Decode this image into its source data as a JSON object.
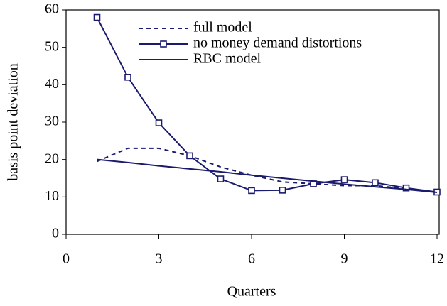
{
  "chart_data": {
    "type": "line",
    "x_label": "Quarters",
    "y_label": "basis point deviation",
    "x": [
      1,
      2,
      3,
      4,
      5,
      6,
      7,
      8,
      9,
      10,
      11,
      12
    ],
    "series": [
      {
        "name": "full model",
        "color": "#1a1a6e",
        "dash": true,
        "marker": null,
        "values": [
          19.5,
          23,
          23,
          21,
          18,
          15.8,
          14,
          13.5,
          13,
          13,
          12.2,
          11.2
        ]
      },
      {
        "name": "no money demand distortions",
        "color": "#1a1a6e",
        "dash": false,
        "marker": "square",
        "values": [
          58,
          42,
          29.8,
          21,
          14.8,
          11.7,
          11.8,
          13.5,
          14.6,
          13.8,
          12.4,
          11.3
        ]
      },
      {
        "name": "RBC model",
        "color": "#1a1a6e",
        "dash": false,
        "marker": null,
        "values": [
          20,
          19.2,
          18.3,
          17.5,
          16.7,
          15.8,
          15,
          14.2,
          13.4,
          12.7,
          12,
          11.2
        ]
      }
    ],
    "xlim": [
      0,
      12
    ],
    "xticks": [
      0,
      3,
      6,
      9,
      12
    ],
    "ylim": [
      0,
      60
    ],
    "yticks": [
      0,
      10,
      20,
      30,
      40,
      50,
      60
    ],
    "legend": "top"
  }
}
